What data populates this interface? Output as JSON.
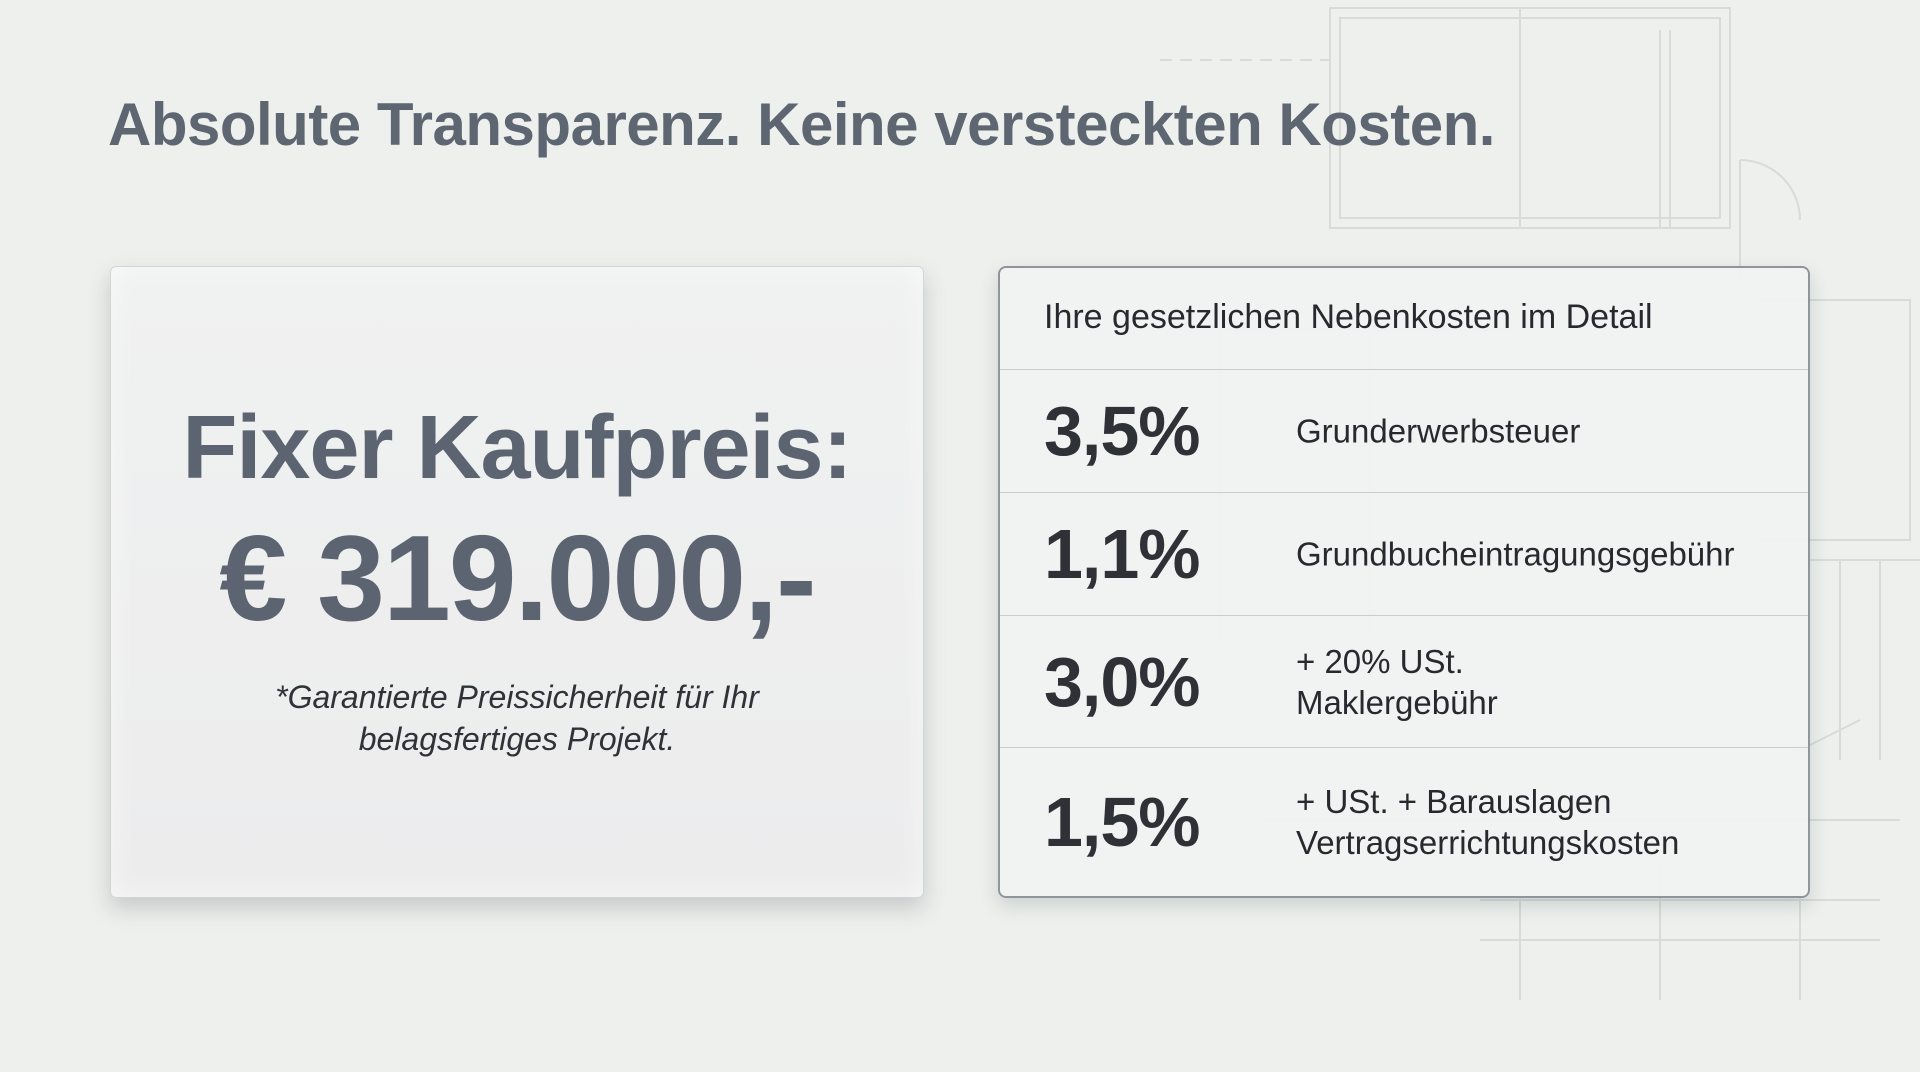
{
  "headline": "Absolute Transparenz. Keine versteckten Kosten.",
  "price_card": {
    "label": "Fixer Kaufpreis:",
    "value": "€ 319.000,-",
    "note_line1": "*Garantierte Preissicherheit für Ihr",
    "note_line2": "belagsfertiges Projekt."
  },
  "fees": {
    "title": "Ihre gesetzlichen Nebenkosten im Detail",
    "rows": [
      {
        "percent": "3,5%",
        "line1": "Grunderwerbsteuer",
        "line2": ""
      },
      {
        "percent": "1,1%",
        "line1": "Grundbucheintragungsgebühr",
        "line2": ""
      },
      {
        "percent": "3,0%",
        "line1": "+ 20% USt.",
        "line2": "Maklergebühr"
      },
      {
        "percent": "1,5%",
        "line1": "+ USt. + Barauslagen",
        "line2": "Vertragserrichtungskosten"
      }
    ]
  },
  "colors": {
    "background": "#edf0ed",
    "heading_text": "#5d6671",
    "body_text": "#26292d",
    "card_border": "#8f969b"
  }
}
